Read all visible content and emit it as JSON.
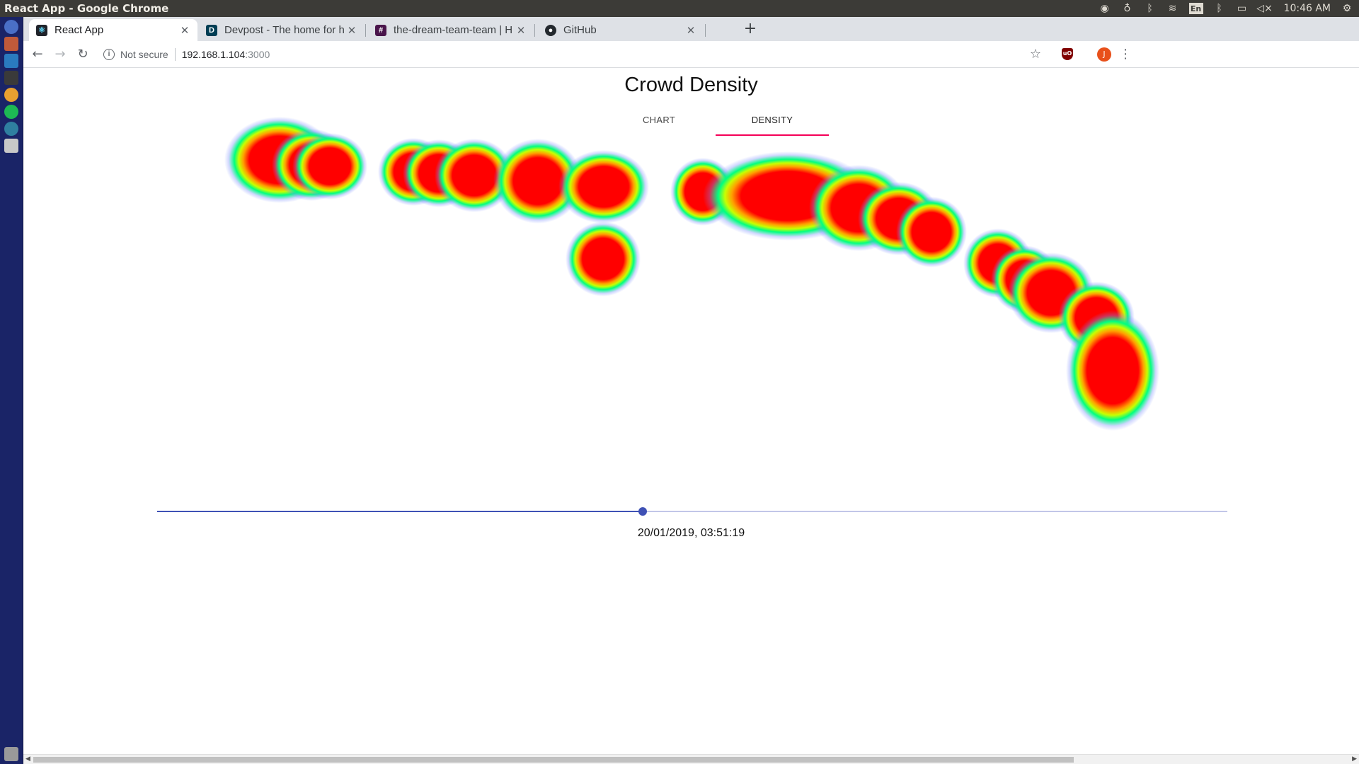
{
  "os": {
    "window_title": "React App - Google Chrome",
    "keyboard_layout": "En",
    "clock": "10:46 AM"
  },
  "browser": {
    "tabs": [
      {
        "title": "React App",
        "favicon": "react-icon",
        "active": true
      },
      {
        "title": "Devpost - The home for h",
        "favicon": "devpost-icon",
        "active": false
      },
      {
        "title": "the-dream-team-team | H",
        "favicon": "slack-icon",
        "active": false
      },
      {
        "title": "GitHub",
        "favicon": "github-icon",
        "active": false
      }
    ],
    "security_label": "Not secure",
    "url_host": "192.168.1.104",
    "url_port": ":3000",
    "profile_initial": "J",
    "ublock_label": "uO"
  },
  "app": {
    "title": "Crowd Density",
    "tabs": [
      {
        "label": "CHART",
        "selected": false
      },
      {
        "label": "DENSITY",
        "selected": true
      }
    ],
    "accent_color": "#f50057",
    "slider_color": "#3f51b5",
    "slider_position": 0.454,
    "timestamp": "20/01/2019, 03:51:19"
  }
}
